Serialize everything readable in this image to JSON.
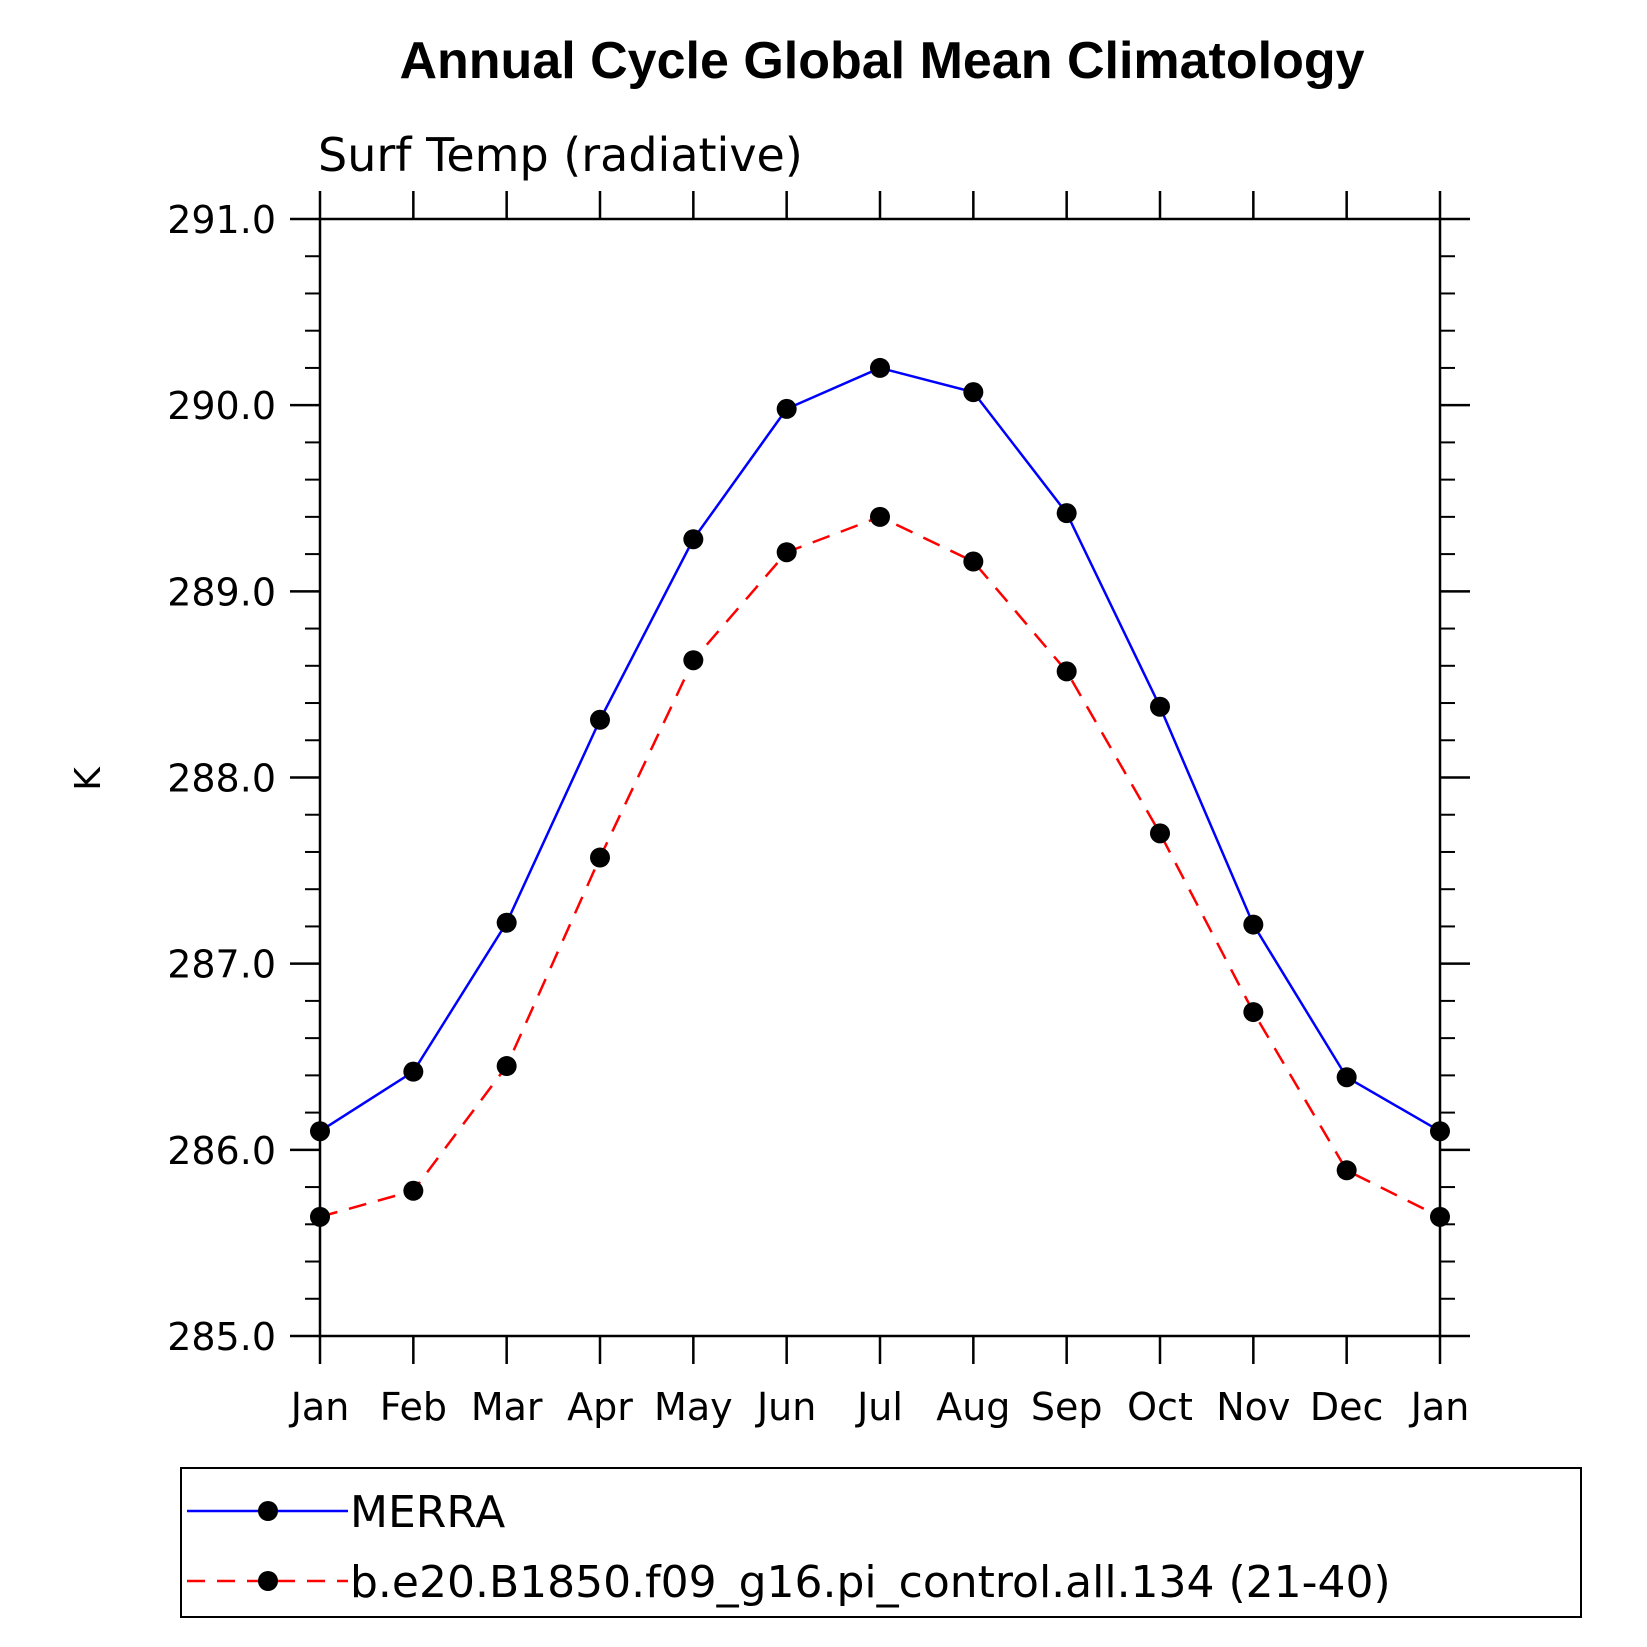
{
  "chart_data": {
    "type": "line",
    "title": "Annual Cycle Global Mean Climatology",
    "subtitle": "Surf Temp (radiative)",
    "xlabel": "",
    "ylabel": "K",
    "categories": [
      "Jan",
      "Feb",
      "Mar",
      "Apr",
      "May",
      "Jun",
      "Jul",
      "Aug",
      "Sep",
      "Oct",
      "Nov",
      "Dec",
      "Jan"
    ],
    "ylim": [
      285.0,
      291.0
    ],
    "yticks": [
      "285.0",
      "286.0",
      "287.0",
      "288.0",
      "289.0",
      "290.0",
      "291.0"
    ],
    "y_minor_step": 0.2,
    "grid": false,
    "legend_position": "bottom",
    "series": [
      {
        "name": "MERRA",
        "color": "#0000ff",
        "dash": "solid",
        "marker_color": "#000000",
        "values": [
          286.1,
          286.42,
          287.22,
          288.31,
          289.28,
          289.98,
          290.2,
          290.07,
          289.42,
          288.38,
          287.21,
          286.39,
          286.1
        ]
      },
      {
        "name": "b.e20.B1850.f09_g16.pi_control.all.134 (21-40)",
        "color": "#ff0000",
        "dash": "dashed",
        "marker_color": "#000000",
        "values": [
          285.64,
          285.78,
          286.45,
          287.57,
          288.63,
          289.21,
          289.4,
          289.16,
          288.57,
          287.7,
          286.74,
          285.89,
          285.64
        ]
      }
    ]
  }
}
